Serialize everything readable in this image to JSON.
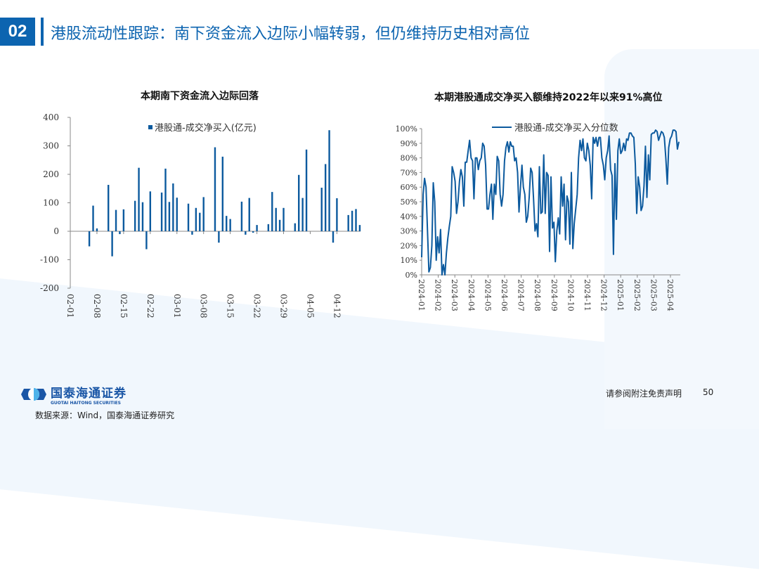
{
  "header": {
    "number": "02",
    "title": "港股流动性跟踪：南下资金流入边际小幅转弱，但仍维持历史相对高位"
  },
  "chart_data": [
    {
      "type": "bar",
      "title": "本期南下资金流入边际回落",
      "legend": "港股通-成交净买入(亿元)",
      "ylim": [
        -200,
        400
      ],
      "yticks": [
        400,
        300,
        200,
        100,
        0,
        -100,
        -200
      ],
      "xlabels": [
        "02-01",
        "02-08",
        "02-15",
        "02-22",
        "03-01",
        "03-08",
        "03-15",
        "03-22",
        "03-29",
        "04-05",
        "04-12"
      ],
      "day_offset": [
        5,
        6,
        7,
        10,
        11,
        12,
        13,
        14,
        17,
        18,
        19,
        20,
        21,
        24,
        25,
        26,
        27,
        28,
        31,
        32,
        33,
        34,
        35,
        38,
        39,
        40,
        41,
        42,
        45,
        46,
        47,
        48,
        49,
        52,
        53,
        54,
        55,
        56,
        59,
        60,
        61,
        62,
        66,
        67,
        68,
        69,
        70,
        73,
        74,
        75,
        76
      ],
      "values": [
        -53,
        90,
        10,
        163,
        -88,
        75,
        -10,
        77,
        107,
        223,
        102,
        -63,
        140,
        136,
        220,
        103,
        168,
        118,
        97,
        -12,
        82,
        65,
        120,
        295,
        -40,
        262,
        54,
        43,
        104,
        -12,
        117,
        -5,
        22,
        25,
        138,
        82,
        40,
        82,
        28,
        198,
        117,
        287,
        153,
        236,
        355,
        -40,
        116,
        57,
        72,
        78,
        22
      ],
      "color": "#0c5a9e"
    },
    {
      "type": "line",
      "title": "本期港股通成交净买入额维持2022年以来91%高位",
      "legend": "港股通-成交净买入分位数",
      "ylim": [
        0,
        100
      ],
      "yticks": [
        "100%",
        "90%",
        "80%",
        "70%",
        "60%",
        "50%",
        "40%",
        "30%",
        "20%",
        "10%",
        "0%"
      ],
      "xlabels": [
        "2024-01",
        "2024-02",
        "2024-03",
        "2024-04",
        "2024-05",
        "2024-06",
        "2024-07",
        "2024-08",
        "2024-09",
        "2024-10",
        "2024-11",
        "2024-12",
        "2025-01",
        "2025-02",
        "2025-03",
        "2025-04"
      ],
      "values": [
        12,
        55,
        66,
        60,
        30,
        2,
        5,
        20,
        63,
        50,
        10,
        26,
        15,
        31,
        0,
        7,
        0,
        15,
        25,
        33,
        40,
        74,
        70,
        64,
        42,
        50,
        64,
        72,
        67,
        47,
        77,
        77,
        85,
        92,
        80,
        78,
        52,
        80,
        80,
        72,
        78,
        80,
        90,
        88,
        75,
        45,
        45,
        55,
        62,
        38,
        62,
        55,
        81,
        78,
        55,
        47,
        55,
        78,
        87,
        91,
        84,
        91,
        88,
        88,
        78,
        80,
        70,
        43,
        60,
        75,
        60,
        55,
        36,
        40,
        53,
        73,
        70,
        52,
        30,
        35,
        26,
        74,
        42,
        43,
        82,
        42,
        70,
        68,
        16,
        67,
        32,
        36,
        9,
        30,
        39,
        28,
        67,
        47,
        62,
        24,
        54,
        50,
        21,
        70,
        18,
        35,
        45,
        55,
        80,
        92,
        85,
        93,
        80,
        78,
        90,
        85,
        75,
        52,
        94,
        90,
        94,
        88,
        94,
        94,
        80,
        75,
        65,
        80,
        85,
        95,
        72,
        68,
        14,
        76,
        38,
        85,
        93,
        83,
        85,
        90,
        85,
        93,
        92,
        97,
        97,
        95,
        94,
        76,
        42,
        67,
        60,
        44,
        47,
        61,
        88,
        53,
        82,
        65,
        96,
        97,
        97,
        99,
        98,
        92,
        95,
        98,
        97,
        94,
        80,
        62,
        87,
        93,
        95,
        99,
        99,
        98,
        86,
        91
      ],
      "color": "#0c5a9e"
    }
  ],
  "footer": {
    "logo_cn": "国泰海通证券",
    "logo_en": "GUOTAI HAITONG SECURITIES",
    "source": "数据来源：Wind，国泰海通证券研究",
    "disclaimer": "请参阅附注免责声明",
    "page": "50"
  }
}
